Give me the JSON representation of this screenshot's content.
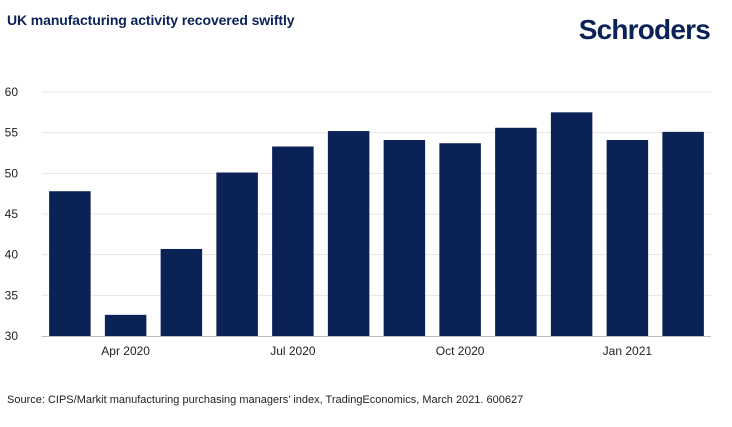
{
  "header": {
    "title": "UK manufacturing activity recovered swiftly",
    "brand": "Schroders"
  },
  "footer": {
    "source": "Source: CIPS/Markit manufacturing purchasing managers’ index, TradingEconomics, March 2021. 600627"
  },
  "colors": {
    "bar": "#0b2257",
    "grid": "#e6e6e6",
    "axis": "#bdbdbd"
  },
  "chart_data": {
    "type": "bar",
    "title": "UK manufacturing activity recovered swiftly",
    "xlabel": "",
    "ylabel": "",
    "categories": [
      "Mar 2020",
      "Apr 2020",
      "May 2020",
      "Jun 2020",
      "Jul 2020",
      "Aug 2020",
      "Sep 2020",
      "Oct 2020",
      "Nov 2020",
      "Dec 2020",
      "Jan 2021",
      "Feb 2021"
    ],
    "values": [
      47.8,
      32.6,
      40.7,
      50.1,
      53.3,
      55.2,
      54.1,
      53.7,
      55.6,
      57.5,
      54.1,
      55.1
    ],
    "ylim": [
      30,
      60
    ],
    "yticks": [
      30,
      35,
      40,
      45,
      50,
      55,
      60
    ],
    "xtick_labels": [
      {
        "index": 1,
        "label": "Apr 2020"
      },
      {
        "index": 4,
        "label": "Jul 2020"
      },
      {
        "index": 7,
        "label": "Oct 2020"
      },
      {
        "index": 10,
        "label": "Jan 2021"
      }
    ],
    "grid": true,
    "legend": "none"
  }
}
